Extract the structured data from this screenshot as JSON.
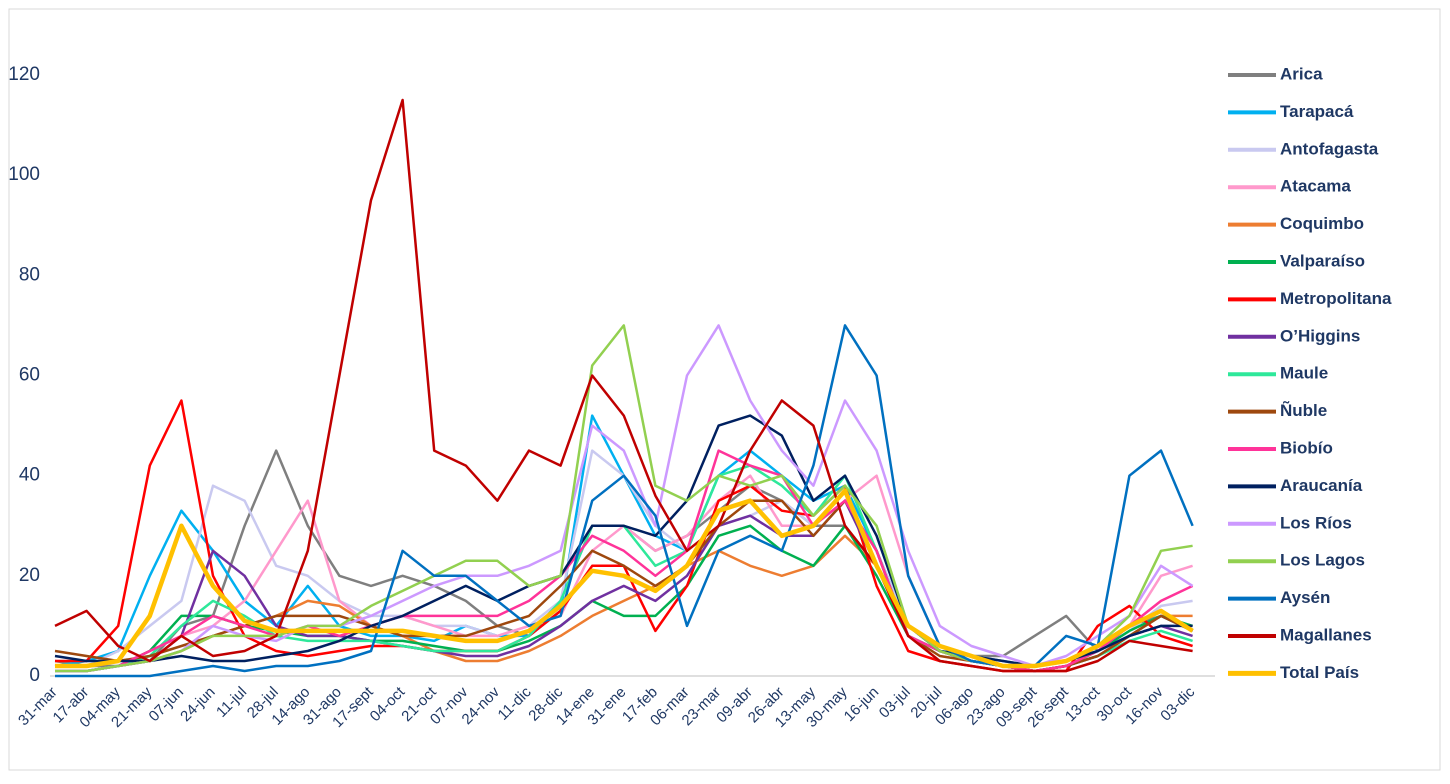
{
  "chart_data": {
    "type": "line",
    "categories": [
      "31-mar",
      "17-abr",
      "04-may",
      "21-may",
      "07-jun",
      "24-jun",
      "11-jul",
      "28-jul",
      "14-ago",
      "31-ago",
      "17-sept",
      "04-oct",
      "21-oct",
      "07-nov",
      "24-nov",
      "11-dic",
      "28-dic",
      "14-ene",
      "31-ene",
      "17-feb",
      "06-mar",
      "23-mar",
      "09-abr",
      "26-abr",
      "13-may",
      "30-may",
      "16-jun",
      "03-jul",
      "20-jul",
      "06-ago",
      "23-ago",
      "09-sept",
      "26-sept",
      "13-oct",
      "30-oct",
      "16-nov",
      "03-dic"
    ],
    "ylim": [
      0,
      120
    ],
    "yticks": [
      0,
      20,
      40,
      60,
      80,
      100,
      120
    ],
    "legend": "right",
    "series": [
      {
        "name": "Arica",
        "color": "#7f7f7f",
        "values": [
          3,
          2,
          2,
          3,
          10,
          12,
          30,
          45,
          30,
          20,
          18,
          20,
          18,
          15,
          10,
          8,
          15,
          30,
          30,
          25,
          28,
          33,
          38,
          35,
          30,
          30,
          22,
          10,
          5,
          4,
          4,
          8,
          12,
          5,
          10,
          12,
          9
        ]
      },
      {
        "name": "Tarapacá",
        "color": "#00b0f0",
        "values": [
          2,
          3,
          5,
          20,
          33,
          25,
          15,
          10,
          18,
          10,
          8,
          8,
          7,
          10,
          8,
          8,
          13,
          52,
          40,
          28,
          25,
          40,
          45,
          40,
          35,
          38,
          25,
          10,
          5,
          4,
          3,
          2,
          3,
          5,
          8,
          12,
          9
        ]
      },
      {
        "name": "Antofagasta",
        "color": "#c9c9f0",
        "values": [
          2,
          2,
          5,
          10,
          15,
          38,
          35,
          22,
          20,
          15,
          12,
          12,
          10,
          10,
          8,
          10,
          15,
          45,
          40,
          30,
          25,
          30,
          32,
          35,
          30,
          35,
          25,
          10,
          6,
          4,
          3,
          2,
          3,
          5,
          9,
          14,
          15
        ]
      },
      {
        "name": "Atacama",
        "color": "#ff99cc",
        "values": [
          1,
          1,
          2,
          5,
          8,
          10,
          15,
          25,
          35,
          15,
          10,
          12,
          10,
          8,
          8,
          10,
          12,
          25,
          30,
          25,
          28,
          35,
          40,
          30,
          30,
          35,
          40,
          20,
          6,
          4,
          2,
          1,
          2,
          5,
          10,
          20,
          22
        ]
      },
      {
        "name": "Coquimbo",
        "color": "#ed7d31",
        "values": [
          1,
          1,
          2,
          3,
          5,
          8,
          10,
          12,
          15,
          14,
          10,
          8,
          5,
          3,
          3,
          5,
          8,
          12,
          15,
          18,
          22,
          25,
          22,
          20,
          22,
          28,
          22,
          10,
          5,
          3,
          2,
          1,
          2,
          4,
          8,
          12,
          12
        ]
      },
      {
        "name": "Valparaíso",
        "color": "#00b050",
        "values": [
          1,
          1,
          2,
          5,
          12,
          12,
          10,
          9,
          8,
          8,
          7,
          7,
          6,
          5,
          5,
          7,
          10,
          15,
          12,
          12,
          18,
          28,
          30,
          25,
          22,
          30,
          20,
          8,
          5,
          3,
          2,
          1,
          2,
          5,
          9,
          12,
          10
        ]
      },
      {
        "name": "Metropolitana",
        "color": "#ff0000",
        "values": [
          3,
          3,
          10,
          42,
          55,
          20,
          8,
          5,
          4,
          5,
          6,
          6,
          5,
          5,
          5,
          8,
          13,
          22,
          22,
          9,
          18,
          35,
          38,
          33,
          32,
          38,
          18,
          5,
          3,
          2,
          1,
          1,
          1,
          10,
          14,
          8,
          6
        ]
      },
      {
        "name": "O’Higgins",
        "color": "#7030a0",
        "values": [
          1,
          1,
          2,
          3,
          8,
          25,
          20,
          10,
          8,
          8,
          7,
          6,
          5,
          4,
          4,
          6,
          10,
          15,
          18,
          15,
          20,
          30,
          32,
          28,
          28,
          35,
          22,
          8,
          5,
          3,
          2,
          1,
          2,
          4,
          8,
          10,
          8
        ]
      },
      {
        "name": "Maule",
        "color": "#2ee89a",
        "values": [
          1,
          1,
          2,
          4,
          10,
          15,
          12,
          8,
          7,
          7,
          7,
          6,
          5,
          5,
          5,
          8,
          15,
          30,
          30,
          22,
          25,
          40,
          42,
          38,
          32,
          40,
          25,
          8,
          5,
          3,
          2,
          1,
          2,
          4,
          7,
          9,
          7
        ]
      },
      {
        "name": "Ñuble",
        "color": "#9e480e",
        "values": [
          5,
          4,
          3,
          4,
          6,
          8,
          10,
          12,
          12,
          12,
          10,
          8,
          8,
          8,
          10,
          12,
          18,
          25,
          22,
          18,
          22,
          30,
          35,
          35,
          28,
          35,
          25,
          8,
          4,
          3,
          2,
          1,
          2,
          4,
          8,
          12,
          9
        ]
      },
      {
        "name": "Biobío",
        "color": "#ff3399",
        "values": [
          1,
          1,
          2,
          5,
          8,
          12,
          10,
          8,
          10,
          8,
          10,
          12,
          12,
          12,
          12,
          15,
          20,
          28,
          25,
          20,
          25,
          45,
          42,
          40,
          30,
          35,
          25,
          8,
          5,
          3,
          2,
          1,
          2,
          5,
          10,
          15,
          18
        ]
      },
      {
        "name": "Araucanía",
        "color": "#002060",
        "values": [
          4,
          3,
          3,
          3,
          4,
          3,
          3,
          4,
          5,
          7,
          10,
          12,
          15,
          18,
          15,
          18,
          20,
          30,
          30,
          28,
          35,
          50,
          52,
          48,
          35,
          40,
          28,
          10,
          5,
          4,
          3,
          2,
          3,
          5,
          8,
          10,
          10
        ]
      },
      {
        "name": "Los Ríos",
        "color": "#cc99ff",
        "values": [
          1,
          1,
          2,
          3,
          5,
          10,
          8,
          7,
          10,
          10,
          12,
          15,
          18,
          20,
          20,
          22,
          25,
          50,
          45,
          30,
          60,
          70,
          55,
          45,
          38,
          55,
          45,
          25,
          10,
          6,
          4,
          2,
          4,
          8,
          12,
          22,
          18
        ]
      },
      {
        "name": "Los Lagos",
        "color": "#92d050",
        "values": [
          1,
          1,
          2,
          3,
          5,
          8,
          8,
          8,
          10,
          10,
          14,
          17,
          20,
          23,
          23,
          18,
          20,
          62,
          70,
          38,
          35,
          40,
          38,
          40,
          32,
          38,
          30,
          10,
          5,
          3,
          2,
          2,
          3,
          6,
          12,
          25,
          26
        ]
      },
      {
        "name": "Aysén",
        "color": "#0070c0",
        "values": [
          0,
          0,
          0,
          0,
          1,
          2,
          1,
          2,
          2,
          3,
          5,
          25,
          20,
          20,
          15,
          10,
          12,
          35,
          40,
          32,
          10,
          25,
          28,
          25,
          42,
          70,
          60,
          20,
          6,
          3,
          2,
          2,
          8,
          6,
          40,
          45,
          30
        ]
      },
      {
        "name": "Magallanes",
        "color": "#c00000",
        "values": [
          10,
          13,
          6,
          3,
          8,
          4,
          5,
          8,
          25,
          60,
          95,
          115,
          45,
          42,
          35,
          45,
          42,
          60,
          52,
          36,
          25,
          30,
          45,
          55,
          50,
          30,
          22,
          8,
          3,
          2,
          1,
          1,
          1,
          3,
          7,
          6,
          5
        ]
      },
      {
        "name": "Total País",
        "color": "#ffc000",
        "values": [
          2,
          2,
          3,
          12,
          30,
          18,
          11,
          9,
          9,
          9,
          9,
          9,
          8,
          7,
          7,
          9,
          14,
          21,
          20,
          17,
          22,
          33,
          35,
          28,
          30,
          37,
          22,
          10,
          6,
          4,
          2,
          2,
          3,
          6,
          10,
          13,
          9
        ]
      }
    ]
  }
}
